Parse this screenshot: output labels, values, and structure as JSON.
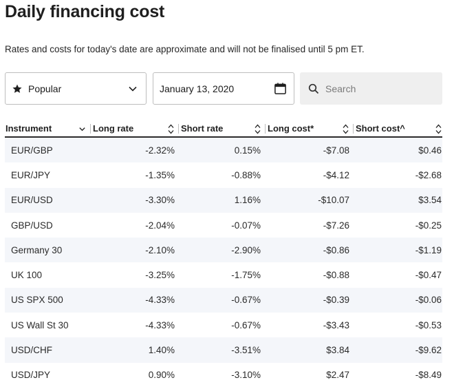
{
  "page": {
    "title": "Daily financing cost",
    "subtitle": "Rates and costs for today's date are approximate and will not be finalised until 5 pm ET."
  },
  "filters": {
    "category_label": "Popular",
    "date_value": "January 13, 2020",
    "search_placeholder": "Search"
  },
  "table": {
    "headers": [
      "Instrument",
      "Long rate",
      "Short rate",
      "Long cost*",
      "Short cost^"
    ],
    "rows": [
      [
        "EUR/GBP",
        "-2.32%",
        "0.15%",
        "-$7.08",
        "$0.46"
      ],
      [
        "EUR/JPY",
        "-1.35%",
        "-0.88%",
        "-$4.12",
        "-$2.68"
      ],
      [
        "EUR/USD",
        "-3.30%",
        "1.16%",
        "-$10.07",
        "$3.54"
      ],
      [
        "GBP/USD",
        "-2.04%",
        "-0.07%",
        "-$7.26",
        "-$0.25"
      ],
      [
        "Germany 30",
        "-2.10%",
        "-2.90%",
        "-$0.86",
        "-$1.19"
      ],
      [
        "UK 100",
        "-3.25%",
        "-1.75%",
        "-$0.88",
        "-$0.47"
      ],
      [
        "US SPX 500",
        "-4.33%",
        "-0.67%",
        "-$0.39",
        "-$0.06"
      ],
      [
        "US Wall St 30",
        "-4.33%",
        "-0.67%",
        "-$3.43",
        "-$0.53"
      ],
      [
        "USD/CHF",
        "1.40%",
        "-3.51%",
        "$3.84",
        "-$9.62"
      ],
      [
        "USD/JPY",
        "0.90%",
        "-3.10%",
        "$2.47",
        "-$8.49"
      ]
    ]
  },
  "icons": {
    "category": "star-icon",
    "dropdown": "chevron-down-icon",
    "date": "calendar-icon",
    "search": "search-icon",
    "sort": "sort-icon"
  },
  "colors": {
    "text": "#1f1f1f",
    "stripe": "#f4f6fa",
    "search_bg": "#efefef",
    "border": "#bdbdbd"
  }
}
